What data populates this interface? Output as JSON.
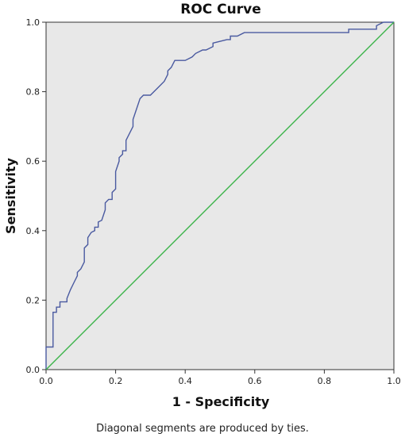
{
  "chart_data": {
    "type": "line",
    "title": "ROC Curve",
    "xlabel": "1 - Specificity",
    "ylabel": "Sensitivity",
    "xlim": [
      0,
      1
    ],
    "ylim": [
      0,
      1
    ],
    "xticks": [
      "0.0",
      "0.2",
      "0.4",
      "0.6",
      "0.8",
      "1.0"
    ],
    "yticks": [
      "0.0",
      "0.2",
      "0.4",
      "0.6",
      "0.8",
      "1.0"
    ],
    "grid": false,
    "legend": "none",
    "background_color": "#e8e8e8",
    "series": [
      {
        "color": "#4a5aa0",
        "x": [
          0,
          0,
          0.02,
          0.02,
          0.03,
          0.03,
          0.04,
          0.04,
          0.06,
          0.06,
          0.07,
          0.08,
          0.09,
          0.09,
          0.1,
          0.11,
          0.11,
          0.12,
          0.12,
          0.13,
          0.14,
          0.14,
          0.15,
          0.15,
          0.16,
          0.17,
          0.17,
          0.18,
          0.19,
          0.19,
          0.2,
          0.2,
          0.21,
          0.21,
          0.22,
          0.22,
          0.23,
          0.23,
          0.24,
          0.25,
          0.25,
          0.26,
          0.27,
          0.28,
          0.3,
          0.31,
          0.32,
          0.34,
          0.35,
          0.35,
          0.36,
          0.37,
          0.38,
          0.4,
          0.42,
          0.43,
          0.45,
          0.46,
          0.48,
          0.48,
          0.52,
          0.53,
          0.53,
          0.55,
          0.57,
          0.6,
          0.62,
          0.68,
          0.75,
          0.8,
          0.87,
          0.87,
          0.95,
          0.95,
          0.97,
          1.0
        ],
        "y": [
          0,
          0.065,
          0.065,
          0.165,
          0.165,
          0.18,
          0.18,
          0.195,
          0.195,
          0.205,
          0.23,
          0.25,
          0.27,
          0.28,
          0.29,
          0.31,
          0.35,
          0.36,
          0.38,
          0.395,
          0.4,
          0.41,
          0.41,
          0.425,
          0.43,
          0.46,
          0.48,
          0.49,
          0.49,
          0.51,
          0.52,
          0.57,
          0.6,
          0.61,
          0.62,
          0.63,
          0.63,
          0.66,
          0.68,
          0.7,
          0.72,
          0.75,
          0.78,
          0.79,
          0.79,
          0.8,
          0.81,
          0.83,
          0.85,
          0.86,
          0.87,
          0.89,
          0.89,
          0.89,
          0.9,
          0.91,
          0.92,
          0.92,
          0.93,
          0.94,
          0.95,
          0.95,
          0.96,
          0.96,
          0.97,
          0.97,
          0.97,
          0.97,
          0.97,
          0.97,
          0.97,
          0.98,
          0.98,
          0.99,
          1.0,
          1.0
        ]
      },
      {
        "color": "#3cb44b",
        "x": [
          0,
          1
        ],
        "y": [
          0,
          1
        ]
      }
    ]
  },
  "footnote": "Diagonal segments are produced by ties."
}
